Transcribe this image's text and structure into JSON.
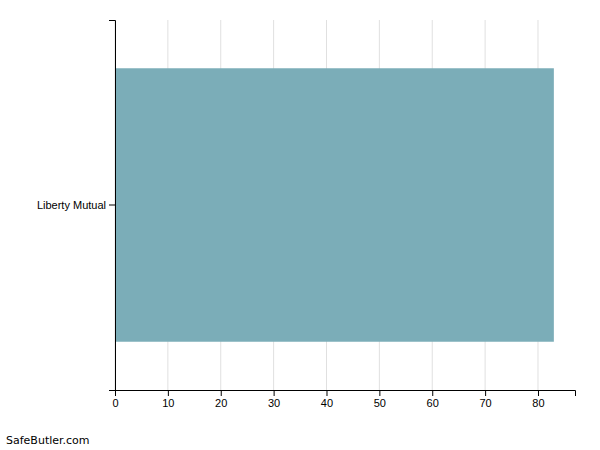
{
  "chart_data": {
    "type": "bar",
    "orientation": "horizontal",
    "categories": [
      "Liberty Mutual"
    ],
    "values": [
      83
    ],
    "color": "#7BADB8",
    "xlim": [
      0,
      87
    ],
    "xticks": [
      0,
      10,
      20,
      30,
      40,
      50,
      60,
      70,
      80
    ],
    "grid": true,
    "annotations": [
      "SafeButler.com"
    ]
  }
}
